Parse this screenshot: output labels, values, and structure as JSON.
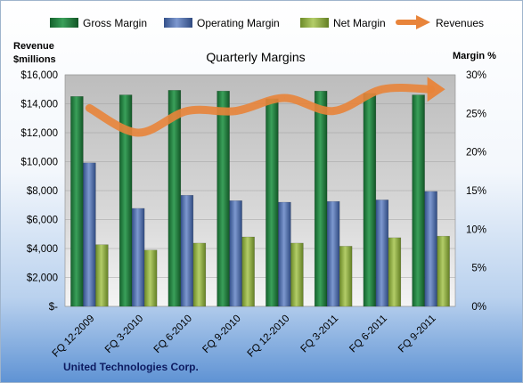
{
  "chart_data": {
    "type": "bar",
    "title": "Quarterly Margins",
    "ylabel_left": [
      "Revenue",
      "$millions"
    ],
    "ylabel_right": "Margin %",
    "source": "United Technologies Corp.",
    "categories": [
      "FQ 12-2009",
      "FQ 3-2010",
      "FQ 6-2010",
      "FQ 9-2010",
      "FQ 12-2010",
      "FQ 3-2011",
      "FQ 6-2011",
      "FQ 9-2011"
    ],
    "left_axis": {
      "min": 0,
      "max": 16000,
      "ticks": [
        "$-",
        "$2,000",
        "$4,000",
        "$6,000",
        "$8,000",
        "$10,000",
        "$12,000",
        "$14,000",
        "$16,000"
      ]
    },
    "right_axis": {
      "min": 0,
      "max": 30,
      "ticks": [
        "0%",
        "5%",
        "10%",
        "15%",
        "20%",
        "25%",
        "30%"
      ]
    },
    "series": [
      {
        "name": "Gross Margin",
        "axis": "right",
        "color": "#1f7a3a",
        "values": [
          27.2,
          27.4,
          28.0,
          27.9,
          26.9,
          27.9,
          27.6,
          27.4
        ]
      },
      {
        "name": "Operating Margin",
        "axis": "right",
        "color": "#4a6aa8",
        "values": [
          18.6,
          12.7,
          14.4,
          13.7,
          13.5,
          13.6,
          13.8,
          14.9
        ]
      },
      {
        "name": "Net Margin",
        "axis": "right",
        "color": "#8fae3e",
        "values": [
          8.0,
          7.3,
          8.2,
          9.0,
          8.2,
          7.8,
          8.9,
          9.1
        ]
      },
      {
        "name": "Revenues",
        "type": "line",
        "axis": "left",
        "color": "#e8843a",
        "values": [
          13700,
          12000,
          13500,
          13500,
          14400,
          13500,
          15000,
          15000
        ]
      }
    ],
    "legend_position": "top",
    "grid": true
  }
}
